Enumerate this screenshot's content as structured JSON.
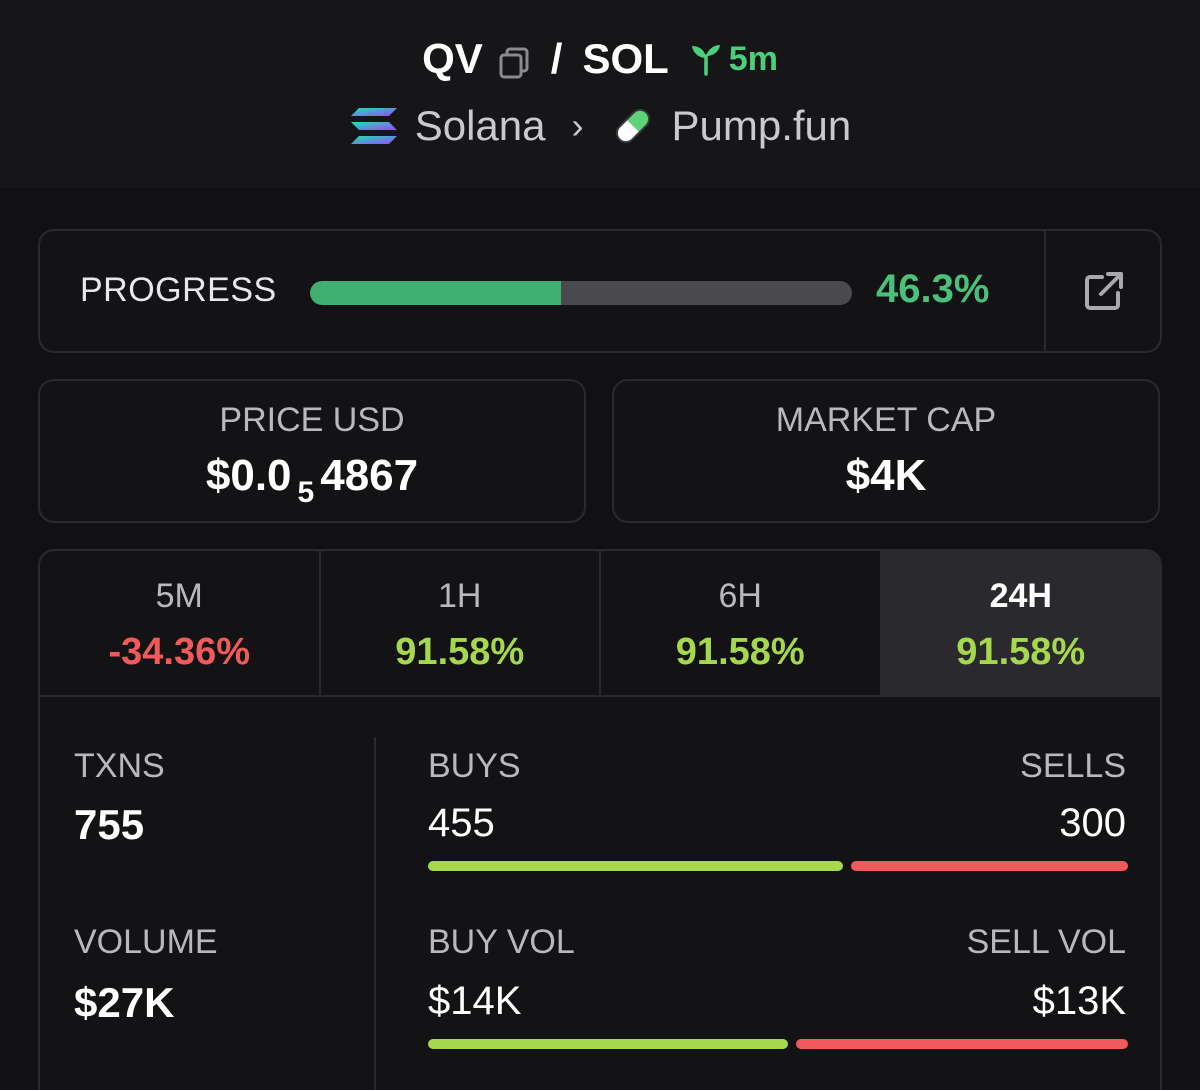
{
  "header": {
    "base_token": "QV",
    "separator": "/",
    "quote_token": "SOL",
    "age": "5m",
    "chain": "Solana",
    "platform": "Pump.fun"
  },
  "progress": {
    "label": "PROGRESS",
    "value_text": "46.3%",
    "value": 46.3
  },
  "price": {
    "label": "PRICE USD",
    "prefix": "$0.0",
    "zeros": "5",
    "digits": "4867"
  },
  "market_cap": {
    "label": "MARKET CAP",
    "value": "$4K"
  },
  "tabs": [
    {
      "label": "5M",
      "value": "-34.36%"
    },
    {
      "label": "1H",
      "value": "91.58%"
    },
    {
      "label": "6H",
      "value": "91.58%"
    },
    {
      "label": "24H",
      "value": "91.58%"
    }
  ],
  "txns": {
    "label": "TXNS",
    "value": "755",
    "buys_label": "BUYS",
    "buys": "455",
    "sells_label": "SELLS",
    "sells": "300",
    "buy_share": 0.6
  },
  "volume": {
    "label": "VOLUME",
    "value": "$27K",
    "buy_label": "BUY VOL",
    "buy": "$14K",
    "sell_label": "SELL VOL",
    "sell": "$13K",
    "buy_share": 0.52
  },
  "colors": {
    "accent_green": "#4ac07a",
    "positive": "#a6d84e",
    "negative": "#f05a5a"
  }
}
